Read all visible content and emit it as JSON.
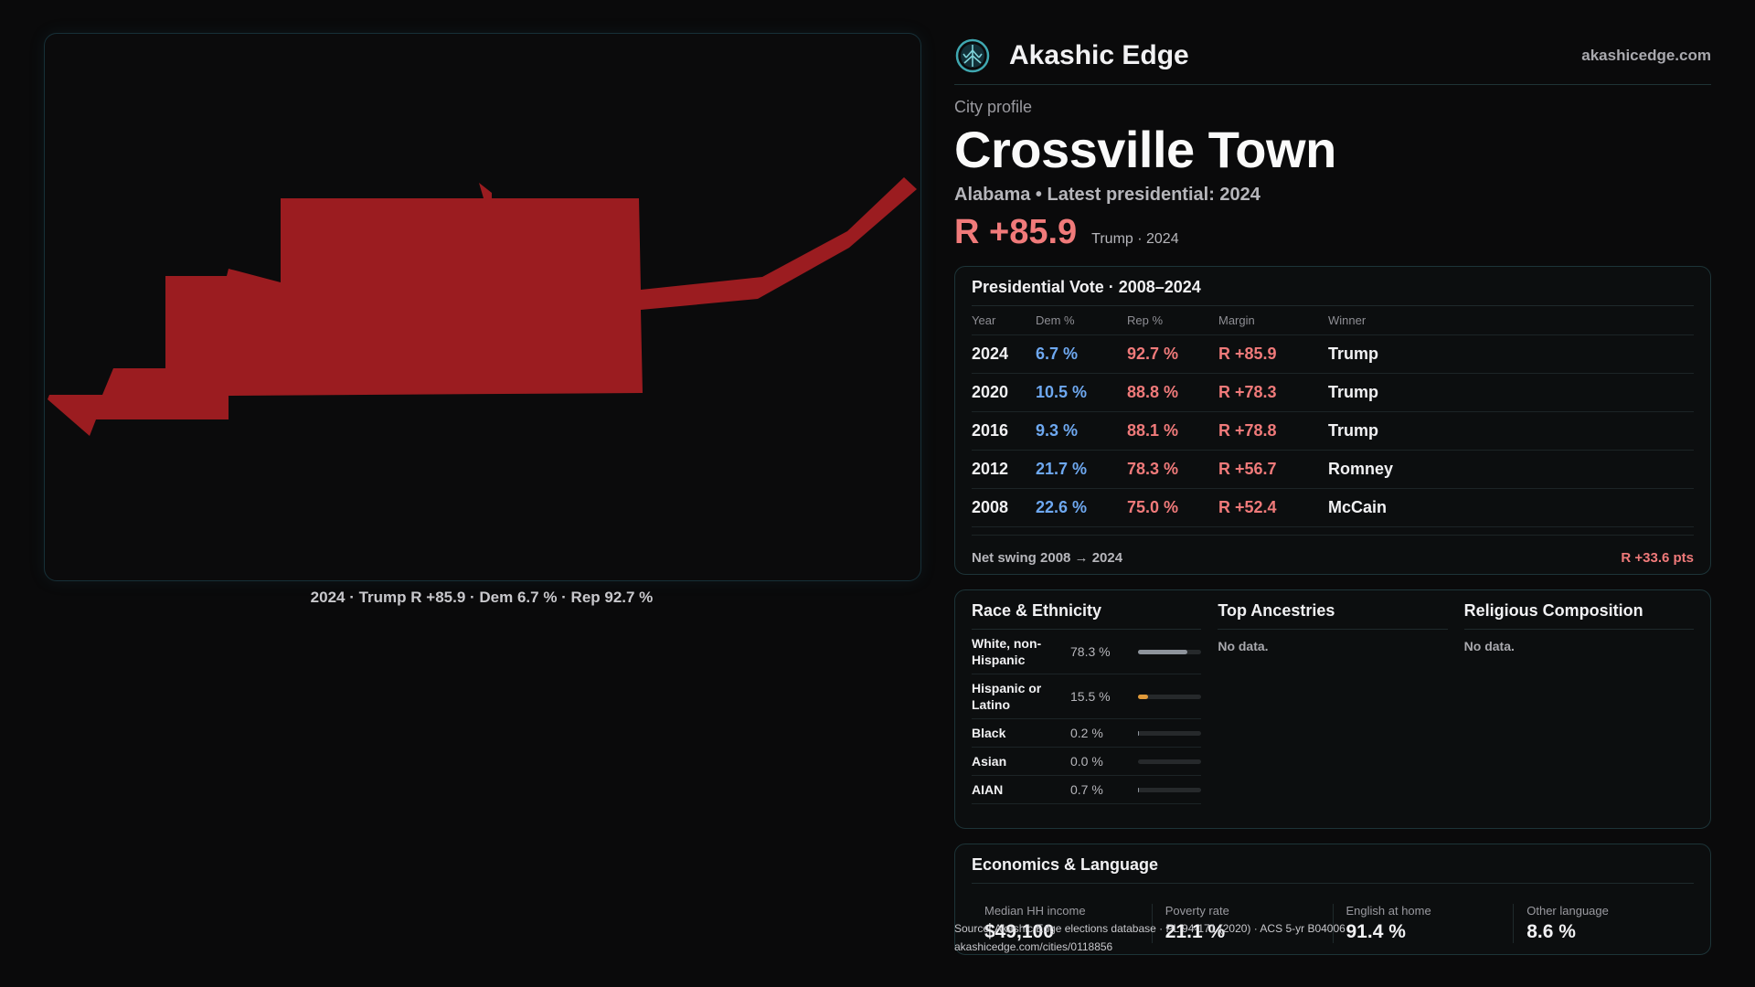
{
  "brand": {
    "name": "Akashic Edge",
    "url": "akashicedge.com",
    "logo_icon": "tree-logo-icon",
    "accent": "#3fa7b0"
  },
  "profile": {
    "eyebrow": "City profile",
    "city": "Crossville Town",
    "subtitle": "Alabama • Latest presidential: 2024",
    "margin": "R +85.9",
    "margin_note": "Trump · 2024"
  },
  "map": {
    "caption": "2024 · Trump R +85.9 · Dem 6.7 % · Rep 92.7 %",
    "fill_color": "#9b1c20"
  },
  "votes": {
    "title": "Presidential Vote · 2008–2024",
    "headers": [
      "Year",
      "Dem %",
      "Rep %",
      "Margin",
      "Winner"
    ],
    "rows": [
      {
        "year": "2024",
        "dem": "6.7 %",
        "rep": "92.7 %",
        "margin": "R +85.9",
        "winner": "Trump"
      },
      {
        "year": "2020",
        "dem": "10.5 %",
        "rep": "88.8 %",
        "margin": "R +78.3",
        "winner": "Trump"
      },
      {
        "year": "2016",
        "dem": "9.3 %",
        "rep": "88.1 %",
        "margin": "R +78.8",
        "winner": "Trump"
      },
      {
        "year": "2012",
        "dem": "21.7 %",
        "rep": "78.3 %",
        "margin": "R +56.7",
        "winner": "Romney"
      },
      {
        "year": "2008",
        "dem": "22.6 %",
        "rep": "75.0 %",
        "margin": "R +52.4",
        "winner": "McCain"
      }
    ],
    "swing_label": "Net swing 2008 → 2024",
    "swing_value": "R +33.6 pts"
  },
  "race": {
    "title": "Race & Ethnicity",
    "rows": [
      {
        "name": "White, non-Hispanic",
        "pct": "78.3 %",
        "value": 0.783,
        "color": "#8e949c"
      },
      {
        "name": "Hispanic or Latino",
        "pct": "15.5 %",
        "value": 0.155,
        "color": "#e09a3a"
      },
      {
        "name": "Black",
        "pct": "0.2 %",
        "value": 0.002,
        "color": "#8e949c"
      },
      {
        "name": "Asian",
        "pct": "0.0 %",
        "value": 0.0,
        "color": "#8e949c"
      },
      {
        "name": "AIAN",
        "pct": "0.7 %",
        "value": 0.007,
        "color": "#8e949c"
      }
    ]
  },
  "ancestries": {
    "title": "Top Ancestries",
    "note": "No data."
  },
  "religion": {
    "title": "Religious Composition",
    "note": "No data."
  },
  "economics": {
    "title": "Economics & Language",
    "cells": [
      {
        "label": "Median HH income",
        "value": "$49,100"
      },
      {
        "label": "Poverty rate",
        "value": "21.1 %"
      },
      {
        "label": "English at home",
        "value": "91.4 %"
      },
      {
        "label": "Other language",
        "value": "8.6 %"
      }
    ]
  },
  "source": {
    "line1": "Source: Akashic Edge elections database · PL 94-171 (2020) · ACS 5-yr B04006",
    "line2": "akashicedge.com/cities/0118856"
  }
}
